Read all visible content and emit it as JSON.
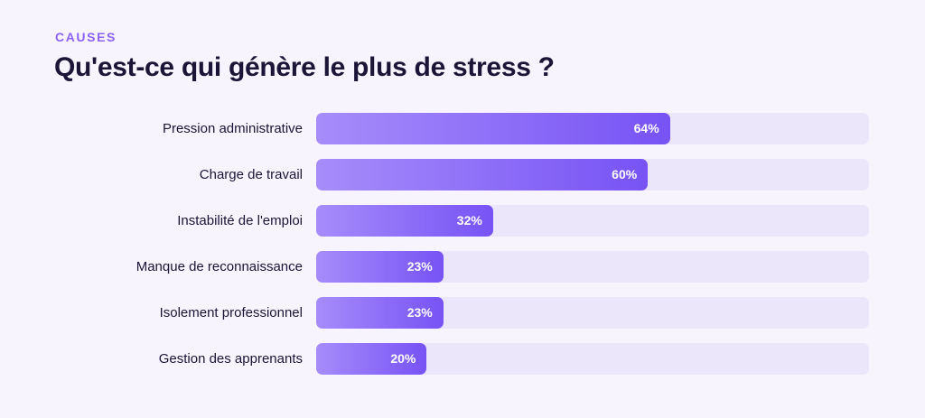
{
  "header": {
    "eyebrow": "CAUSES",
    "title": "Qu'est-ce qui génère le plus de stress ?"
  },
  "colors": {
    "bar_start": "#a68cfa",
    "bar_end": "#7753f5",
    "track": "#ece6fb",
    "eyebrow": "#8b63f7",
    "text": "#1b1537"
  },
  "chart_data": {
    "type": "bar",
    "orientation": "horizontal",
    "categories": [
      "Pression administrative",
      "Charge de travail",
      "Instabilité de l'emploi",
      "Manque de reconnaissance",
      "Isolement professionnel",
      "Gestion des apprenants"
    ],
    "values": [
      64,
      60,
      32,
      23,
      23,
      20
    ],
    "value_labels": [
      "64%",
      "60%",
      "32%",
      "23%",
      "23%",
      "20%"
    ],
    "xlim": [
      0,
      100
    ],
    "grid": false
  }
}
